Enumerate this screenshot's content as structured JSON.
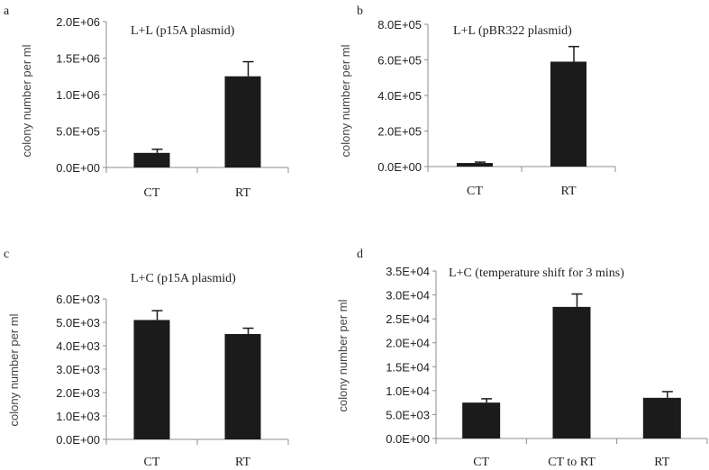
{
  "chart_data": [
    {
      "type": "bar",
      "panel": "a",
      "title": "L+L  (p15A plasmid)",
      "ylabel": "colony number per ml",
      "xlabel": "",
      "categories": [
        "CT",
        "RT"
      ],
      "values": [
        200000,
        1250000
      ],
      "errors": [
        50000,
        200000
      ],
      "ylim": [
        0,
        2000000
      ],
      "yticks": [
        "0.0E+00",
        "5.0E+05",
        "1.0E+06",
        "1.5E+06",
        "2.0E+06"
      ]
    },
    {
      "type": "bar",
      "panel": "b",
      "title": "L+L  (pBR322  plasmid)",
      "ylabel": "colony number per ml",
      "xlabel": "",
      "categories": [
        "CT",
        "RT"
      ],
      "values": [
        20000,
        590000
      ],
      "errors": [
        5000,
        85000
      ],
      "ylim": [
        0,
        800000
      ],
      "yticks": [
        "0.0E+00",
        "2.0E+05",
        "4.0E+05",
        "6.0E+05",
        "8.0E+05"
      ]
    },
    {
      "type": "bar",
      "panel": "c",
      "title": "L+C  (p15A plasmid)",
      "ylabel": "colony number per ml",
      "xlabel": "",
      "categories": [
        "CT",
        "RT"
      ],
      "values": [
        5100,
        4500
      ],
      "errors": [
        400,
        250
      ],
      "ylim": [
        0,
        6000
      ],
      "yticks": [
        "0.0E+00",
        "1.0E+03",
        "2.0E+03",
        "3.0E+03",
        "4.0E+03",
        "5.0E+03",
        "6.0E+03"
      ]
    },
    {
      "type": "bar",
      "panel": "d",
      "title": "L+C  (temperature shift for 3 mins)",
      "ylabel": "colony number per ml",
      "xlabel": "",
      "categories": [
        "CT",
        "CT  to RT",
        "RT"
      ],
      "values": [
        7500,
        27500,
        8500
      ],
      "errors": [
        800,
        2700,
        1300
      ],
      "ylim": [
        0,
        35000
      ],
      "yticks": [
        "0.0E+00",
        "5.0E+03",
        "1.0E+04",
        "1.5E+04",
        "2.0E+04",
        "2.5E+04",
        "3.0E+04",
        "3.5E+04"
      ]
    }
  ]
}
